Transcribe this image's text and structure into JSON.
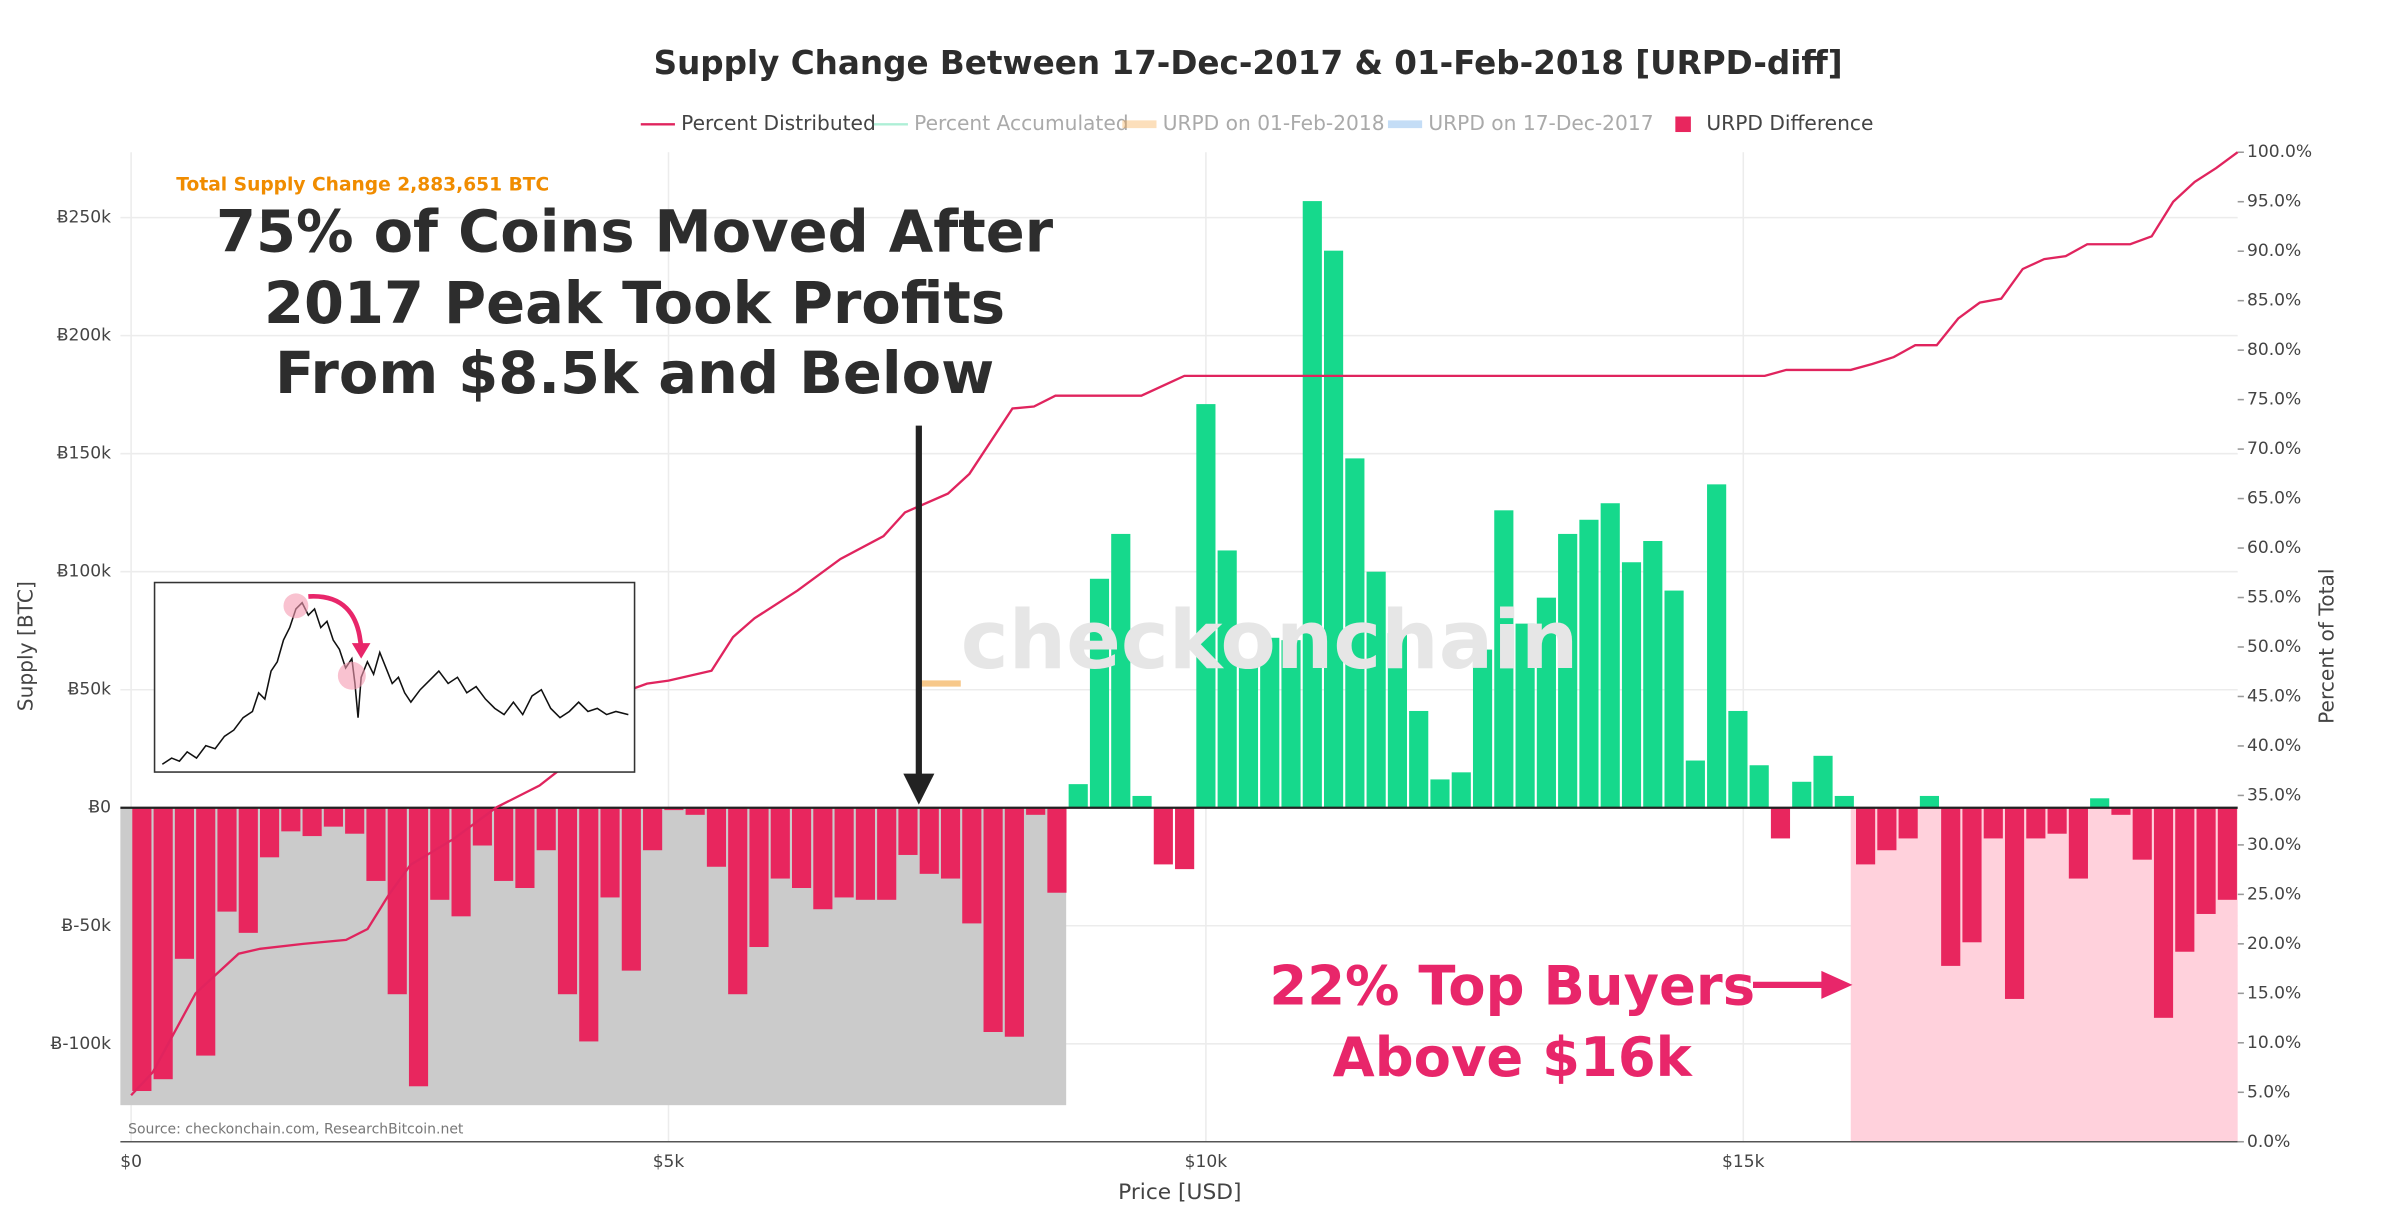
{
  "chart_data": {
    "type": "bar",
    "title": "Supply Change Between 17-Dec-2017 & 01-Feb-2018 [URPD-diff]",
    "x_label": "Price [USD]",
    "y_label": "Supply [BTC]",
    "y2_label": "Percent of Total",
    "xlim": [
      -100,
      19600
    ],
    "xticks": [
      {
        "value": 0,
        "label": "$0"
      },
      {
        "value": 5000,
        "label": "$5k"
      },
      {
        "value": 10000,
        "label": "$10k"
      },
      {
        "value": 15000,
        "label": "$15k"
      }
    ],
    "ylim": [
      -141500,
      277700
    ],
    "yticks": [
      {
        "value": -100000,
        "label": "Ƀ-100k"
      },
      {
        "value": -50000,
        "label": "Ƀ-50k"
      },
      {
        "value": 0,
        "label": "Ƀ0"
      },
      {
        "value": 50000,
        "label": "Ƀ50k"
      },
      {
        "value": 100000,
        "label": "Ƀ100k"
      },
      {
        "value": 150000,
        "label": "Ƀ150k"
      },
      {
        "value": 200000,
        "label": "Ƀ200k"
      },
      {
        "value": 250000,
        "label": "Ƀ250k"
      }
    ],
    "y2lim": [
      0,
      100
    ],
    "y2ticks": [
      {
        "value": 0,
        "label": "0.0%"
      },
      {
        "value": 5,
        "label": "5.0%"
      },
      {
        "value": 10,
        "label": "10.0%"
      },
      {
        "value": 15,
        "label": "15.0%"
      },
      {
        "value": 20,
        "label": "20.0%"
      },
      {
        "value": 25,
        "label": "25.0%"
      },
      {
        "value": 30,
        "label": "30.0%"
      },
      {
        "value": 35,
        "label": "35.0%"
      },
      {
        "value": 40,
        "label": "40.0%"
      },
      {
        "value": 45,
        "label": "45.0%"
      },
      {
        "value": 50,
        "label": "50.0%"
      },
      {
        "value": 55,
        "label": "55.0%"
      },
      {
        "value": 60,
        "label": "60.0%"
      },
      {
        "value": 65,
        "label": "65.0%"
      },
      {
        "value": 70,
        "label": "70.0%"
      },
      {
        "value": 75,
        "label": "75.0%"
      },
      {
        "value": 80,
        "label": "80.0%"
      },
      {
        "value": 85,
        "label": "85.0%"
      },
      {
        "value": 90,
        "label": "90.0%"
      },
      {
        "value": 95,
        "label": "95.0%"
      },
      {
        "value": 100,
        "label": "100.0%"
      }
    ],
    "grid": true,
    "legend": "top",
    "series": [
      {
        "name": "Percent Distributed",
        "color": "#e0245e",
        "type": "line",
        "axis": "y2",
        "visible": true,
        "x": [
          0,
          200,
          400,
          600,
          800,
          1000,
          1200,
          1600,
          2000,
          2200,
          2400,
          2600,
          3000,
          3400,
          3800,
          4000,
          4200,
          4600,
          4800,
          5000,
          5400,
          5600,
          5800,
          6200,
          6600,
          7000,
          7200,
          7600,
          7800,
          8200,
          8400,
          8600,
          9400,
          9800,
          15200,
          15400,
          16000,
          16200,
          16400,
          16600,
          16800,
          17000,
          17200,
          17400,
          17600,
          17800,
          18000,
          18200,
          18600,
          18800,
          19000,
          19200,
          19400,
          19600
        ],
        "values": [
          4.7,
          7,
          11,
          15,
          17,
          19,
          19.5,
          20,
          20.4,
          21.5,
          25,
          28,
          30.6,
          33.8,
          36,
          37.7,
          42,
          45.5,
          46.3,
          46.6,
          47.6,
          51,
          52.9,
          55.7,
          58.9,
          61.2,
          63.6,
          65.5,
          67.5,
          74.1,
          74.3,
          75.4,
          75.4,
          77.4,
          77.4,
          78,
          78,
          78.6,
          79.3,
          80.5,
          80.5,
          83.2,
          84.8,
          85.2,
          88.2,
          89.2,
          89.5,
          90.7,
          90.7,
          91.5,
          95,
          97,
          98.4,
          100
        ]
      },
      {
        "name": "Percent Accumulated",
        "color": "#19d38c",
        "type": "line",
        "visible": false
      },
      {
        "name": "URPD on 01-Feb-2018",
        "color": "#f7a440",
        "type": "bar",
        "visible": false
      },
      {
        "name": "URPD on 17-Dec-2017",
        "color": "#5aa0e6",
        "type": "bar",
        "visible": false
      },
      {
        "name": "URPD Difference",
        "color": "#e8265e",
        "positive_color": "#16d98c",
        "type": "bar",
        "visible": true,
        "x": [
          100,
          298,
          496,
          694,
          892,
          1090,
          1288,
          1486,
          1684,
          1882,
          2080,
          2278,
          2476,
          2674,
          2872,
          3070,
          3268,
          3466,
          3664,
          3862,
          4060,
          4258,
          4456,
          4654,
          4852,
          5050,
          5248,
          5446,
          5644,
          5842,
          6040,
          6238,
          6436,
          6634,
          6832,
          7030,
          7228,
          7426,
          7624,
          7822,
          8020,
          8218,
          8416,
          8614,
          8812,
          9010,
          9208,
          9406,
          9604,
          9802,
          10000,
          10198,
          10396,
          10594,
          10792,
          10990,
          11188,
          11386,
          11584,
          11782,
          11980,
          12178,
          12376,
          12574,
          12772,
          12970,
          13168,
          13366,
          13564,
          13762,
          13960,
          14158,
          14356,
          14554,
          14752,
          14950,
          15148,
          15346,
          15544,
          15742,
          15940,
          16138,
          16336,
          16534,
          16732,
          16930,
          17128,
          17326,
          17524,
          17722,
          17920,
          18118,
          18316,
          18514,
          18712,
          18910,
          19108,
          19306,
          19504
        ],
        "values": [
          -120000,
          -115000,
          -64000,
          -105000,
          -44000,
          -53000,
          -21000,
          -10000,
          -12000,
          -8000,
          -11000,
          -31000,
          -79000,
          -118000,
          -39000,
          -46000,
          -16000,
          -31000,
          -34000,
          -18000,
          -79000,
          -99000,
          -38000,
          -69000,
          -18000,
          -1000,
          -3000,
          -25000,
          -79000,
          -59000,
          -30000,
          -34000,
          -43000,
          -38000,
          -39000,
          -39000,
          -20000,
          -28000,
          -30000,
          -49000,
          -95000,
          -97000,
          -3000,
          -36000,
          10000,
          97000,
          116000,
          5000,
          -24000,
          -26000,
          171000,
          109000,
          63000,
          72000,
          71000,
          257000,
          236000,
          148000,
          100000,
          74000,
          41000,
          12000,
          15000,
          67000,
          126000,
          78000,
          89000,
          116000,
          122000,
          129000,
          104000,
          113000,
          92000,
          20000,
          137000,
          41000,
          18000,
          -13000,
          11000,
          22000,
          5000,
          -24000,
          -18000,
          -13000,
          5000,
          -67000,
          -57000,
          -13000,
          -81000,
          -13000,
          -11000,
          -30000,
          4000,
          -3000,
          -22000,
          -89000,
          -61000,
          -45000,
          -39000
        ]
      }
    ],
    "highlights": [
      {
        "xlim": [
          -100,
          8700
        ],
        "ylim": [
          -126000,
          0
        ],
        "color": "#cbcbcb"
      },
      {
        "xlim": [
          16000,
          19600
        ],
        "ylim": [
          -141500,
          0
        ],
        "color": "#ffd1dc"
      }
    ],
    "supply_note": "Total Supply Change 2,883,651 BTC",
    "callout_left": [
      "75% of Coins Moved After",
      "2017 Peak Took Profits",
      "From $8.5k and Below"
    ],
    "callout_right": [
      "22% Top Buyers",
      "Above $16k"
    ],
    "source": "Source: checkonchain.com, ResearchBitcoin.net",
    "watermark": "checkonchain"
  }
}
